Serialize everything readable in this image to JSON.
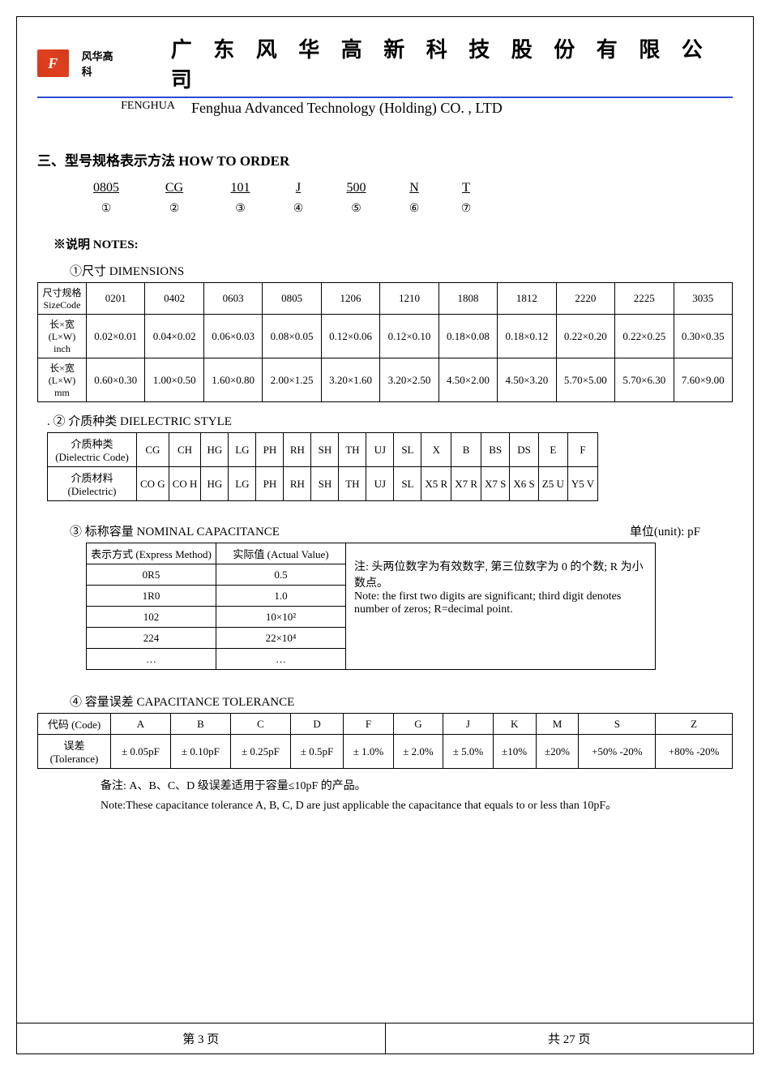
{
  "header": {
    "brand_cn": "风华高科",
    "company_cn": "广 东 风 华 高 新 科 技 股 份 有 限 公 司",
    "fenghua_en": "FENGHUA",
    "company_en": "Fenghua Advanced Technology (Holding) CO. , LTD"
  },
  "section3": {
    "title": "三、型号规格表示方法    HOW TO ORDER",
    "codes": [
      "0805",
      "CG",
      "101",
      "J",
      "500",
      "N",
      "T"
    ],
    "code_widths": [
      60,
      60,
      55,
      40,
      55,
      40,
      40
    ],
    "code_gap": 24,
    "nums": [
      "①",
      "②",
      "③",
      "④",
      "⑤",
      "⑥",
      "⑦"
    ]
  },
  "notes_hdr": "※说明 NOTES:",
  "dim": {
    "label": "①尺寸   DIMENSIONS",
    "row0": [
      "尺寸规格 SizeCode",
      "0201",
      "0402",
      "0603",
      "0805",
      "1206",
      "1210",
      "1808",
      "1812",
      "2220",
      "2225",
      "3035"
    ],
    "row1": [
      "长×宽 (L×W) inch",
      "0.02×0.01",
      "0.04×0.02",
      "0.06×0.03",
      "0.08×0.05",
      "0.12×0.06",
      "0.12×0.10",
      "0.18×0.08",
      "0.18×0.12",
      "0.22×0.20",
      "0.22×0.25",
      "0.30×0.35"
    ],
    "row2": [
      "长×宽 (L×W) mm",
      "0.60×0.30",
      "1.00×0.50",
      "1.60×0.80",
      "2.00×1.25",
      "3.20×1.60",
      "3.20×2.50",
      "4.50×2.00",
      "4.50×3.20",
      "5.70×5.00",
      "5.70×6.30",
      "7.60×9.00"
    ]
  },
  "diel": {
    "label": ". ② 介质种类 DIELECTRIC STYLE",
    "row0": [
      "介质种类 (Dielectric Code)",
      "CG",
      "CH",
      "HG",
      "LG",
      "PH",
      "RH",
      "SH",
      "TH",
      "UJ",
      "SL",
      "X",
      "B",
      "BS",
      "DS",
      "E",
      "F"
    ],
    "row1": [
      "介质材料 (Dielectric)",
      "CO G",
      "CO H",
      "HG",
      "LG",
      "PH",
      "RH",
      "SH",
      "TH",
      "UJ",
      "SL",
      "X5 R",
      "X7 R",
      "X7 S",
      "X6 S",
      "Z5 U",
      "Y5 V"
    ]
  },
  "cap": {
    "label": "③ 标称容量  NOMINAL CAPACITANCE",
    "unit": "单位(unit):  pF",
    "headers": [
      "表示方式 (Express Method)",
      "实际值 (Actual Value)"
    ],
    "rows": [
      [
        "0R5",
        "0.5"
      ],
      [
        "1R0",
        "1.0"
      ],
      [
        "102",
        "10×10²"
      ],
      [
        "224",
        "22×10⁴"
      ],
      [
        "…",
        "…"
      ]
    ],
    "note_cn": "注: 头两位数字为有效数字, 第三位数字为 0 的个数; R 为小数点。",
    "note_en": "Note: the first two digits are significant; third digit denotes number of zeros; R=decimal point."
  },
  "tol": {
    "label": "④ 容量误差 CAPACITANCE TOLERANCE",
    "row0": [
      "代码 (Code)",
      "A",
      "B",
      "C",
      "D",
      "F",
      "G",
      "J",
      "K",
      "M",
      "S",
      "Z"
    ],
    "row1": [
      "误差 (Tolerance)",
      "± 0.05pF",
      "± 0.10pF",
      "± 0.25pF",
      "± 0.5pF",
      "± 1.0%",
      "± 2.0%",
      "± 5.0%",
      "±10%",
      "±20%",
      "+50% -20%",
      "+80% -20%"
    ],
    "note_cn": "备注: A、B、C、D 级误差适用于容量≤10pF 的产品。",
    "note_en": "Note:These capacitance tolerance A, B, C, D are just applicable the capacitance that equals to or less than 10pF。"
  },
  "pager": {
    "left": "第  3  页",
    "right": "共  27  页"
  }
}
